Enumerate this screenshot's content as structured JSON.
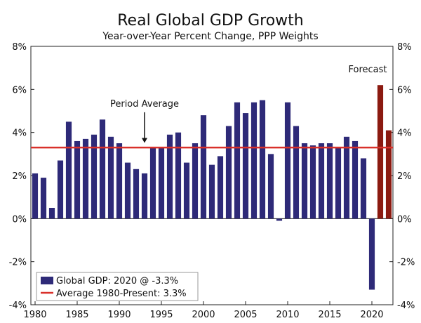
{
  "chart_data": {
    "type": "bar",
    "title": "Real Global GDP Growth",
    "subtitle": "Year-over-Year Percent Change, PPP Weights",
    "xlabel": "",
    "ylabel": "",
    "ylim": [
      -4,
      8
    ],
    "y_ticks": [
      -4,
      -2,
      0,
      2,
      4,
      6,
      8
    ],
    "y_tick_labels": [
      "-4%",
      "-2%",
      "0%",
      "2%",
      "4%",
      "6%",
      "8%"
    ],
    "x_range": [
      1980,
      2022
    ],
    "x_ticks": [
      1980,
      1985,
      1990,
      1995,
      2000,
      2005,
      2010,
      2015,
      2020
    ],
    "x_tick_labels": [
      "1980",
      "1985",
      "1990",
      "1995",
      "2000",
      "2005",
      "2010",
      "2015",
      "2020"
    ],
    "series": [
      {
        "name": "Global GDP: 2020 @ -3.3%",
        "color": "#2e2a78",
        "forecast_color": "#8b1a10",
        "x": [
          1980,
          1981,
          1982,
          1983,
          1984,
          1985,
          1986,
          1987,
          1988,
          1989,
          1990,
          1991,
          1992,
          1993,
          1994,
          1995,
          1996,
          1997,
          1998,
          1999,
          2000,
          2001,
          2002,
          2003,
          2004,
          2005,
          2006,
          2007,
          2008,
          2009,
          2010,
          2011,
          2012,
          2013,
          2014,
          2015,
          2016,
          2017,
          2018,
          2019,
          2020,
          2021,
          2022
        ],
        "values": [
          2.1,
          1.9,
          0.5,
          2.7,
          4.5,
          3.6,
          3.7,
          3.9,
          4.6,
          3.8,
          3.5,
          2.6,
          2.3,
          2.1,
          3.3,
          3.3,
          3.9,
          4.0,
          2.6,
          3.5,
          4.8,
          2.5,
          2.9,
          4.3,
          5.4,
          4.9,
          5.4,
          5.5,
          3.0,
          -0.1,
          5.4,
          4.3,
          3.5,
          3.4,
          3.5,
          3.5,
          3.3,
          3.8,
          3.6,
          2.8,
          -3.3,
          6.2,
          4.1
        ],
        "forecast_from": 2021
      },
      {
        "name": "Average 1980-Present: 3.3%",
        "type": "line",
        "color": "#d9302a",
        "value": 3.3
      }
    ],
    "annotations": [
      {
        "text": "Forecast",
        "at_x": 2022,
        "at_y": 6.8
      },
      {
        "text": "Period Average",
        "at_x": 1993,
        "at_y": 5.2,
        "arrow_to_y": 3.55
      }
    ],
    "legend_position": "bottom-left",
    "grid": false
  }
}
